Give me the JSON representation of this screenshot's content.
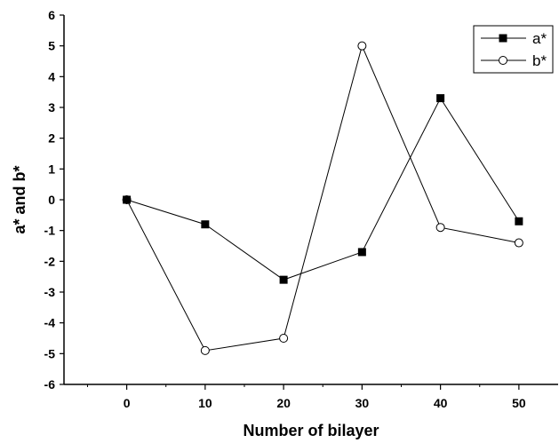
{
  "chart_data": {
    "type": "line",
    "title": "",
    "xlabel": "Number of bilayer",
    "ylabel": "a* and b*",
    "xlim": [
      -8,
      55
    ],
    "ylim": [
      -6,
      6
    ],
    "xticks": [
      0,
      10,
      20,
      30,
      40,
      50
    ],
    "yticks": [
      -6,
      -5,
      -4,
      -3,
      -2,
      -1,
      0,
      1,
      2,
      3,
      4,
      5,
      6
    ],
    "grid": false,
    "legend_position": "top-right",
    "series": [
      {
        "name": "a*",
        "marker": "filled-square",
        "color": "#000000",
        "x": [
          0,
          10,
          20,
          30,
          40,
          50
        ],
        "y": [
          0,
          -0.8,
          -2.6,
          -1.7,
          3.3,
          -0.7
        ]
      },
      {
        "name": "b*",
        "marker": "open-circle",
        "color": "#000000",
        "x": [
          0,
          10,
          20,
          30,
          40,
          50
        ],
        "y": [
          0,
          -4.9,
          -4.5,
          5.0,
          -0.9,
          -1.4
        ]
      }
    ]
  }
}
